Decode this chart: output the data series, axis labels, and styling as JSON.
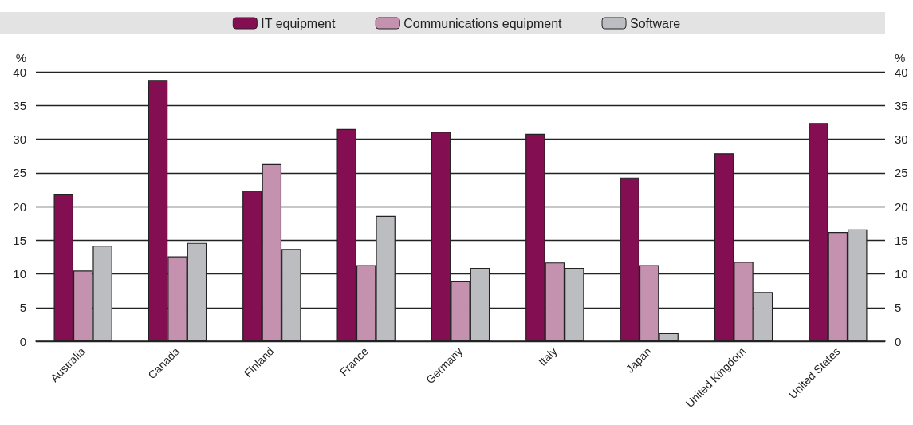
{
  "chart_data": {
    "type": "bar",
    "categories": [
      "Australia",
      "Canada",
      "Finland",
      "France",
      "Germany",
      "Italy",
      "Japan",
      "United Kingdom",
      "United States"
    ],
    "series": [
      {
        "name": "IT equipment",
        "color": "#830f52",
        "values": [
          21.9,
          38.8,
          22.3,
          31.5,
          31.1,
          30.8,
          24.3,
          27.9,
          32.4
        ]
      },
      {
        "name": "Communications equipment",
        "color": "#c491ae",
        "values": [
          10.5,
          12.6,
          26.3,
          11.3,
          8.9,
          11.7,
          11.3,
          11.8,
          16.2
        ]
      },
      {
        "name": "Software",
        "color": "#bcbdc1",
        "values": [
          14.2,
          14.6,
          13.7,
          18.6,
          10.9,
          10.9,
          1.2,
          7.3,
          16.6
        ]
      }
    ],
    "ylabel": "%",
    "y2label": "%",
    "ylim": [
      0,
      40
    ],
    "yticks": [
      0,
      5,
      10,
      15,
      20,
      25,
      30,
      35,
      40
    ],
    "y2lim": [
      0,
      40
    ],
    "y2ticks": [
      0,
      5,
      10,
      15,
      20,
      25,
      30,
      35,
      40
    ],
    "grid": "y",
    "legend": "top"
  }
}
